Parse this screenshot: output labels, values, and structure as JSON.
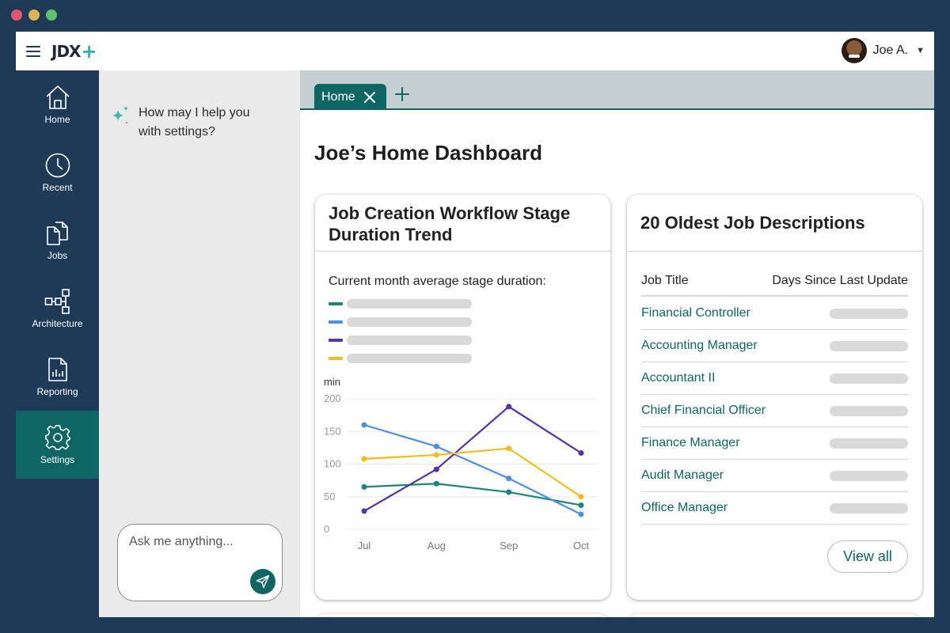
{
  "window": {
    "dot_colors": [
      "#e0566b",
      "#e0b256",
      "#5cc26b"
    ]
  },
  "topbar": {
    "logo_text": "JDX",
    "logo_plus": "+",
    "user_name": "Joe A.",
    "menu_icon": "hamburger-icon",
    "dropdown_icon": "caret-down-icon"
  },
  "nav": {
    "items": [
      {
        "label": "Home",
        "icon": "home-icon"
      },
      {
        "label": "Recent",
        "icon": "clock-icon"
      },
      {
        "label": "Jobs",
        "icon": "documents-icon"
      },
      {
        "label": "Architecture",
        "icon": "hierarchy-icon"
      },
      {
        "label": "Reporting",
        "icon": "report-icon"
      },
      {
        "label": "Settings",
        "icon": "gear-icon",
        "active": true
      }
    ]
  },
  "assistant": {
    "greeting": "How may I help you with settings?",
    "input_placeholder": "Ask me anything...",
    "sparkle_icon": "sparkle-icon",
    "send_icon": "send-icon"
  },
  "tabs": {
    "items": [
      {
        "label": "Home"
      }
    ],
    "add_icon": "plus-icon"
  },
  "dashboard": {
    "title": "Joe’s Home Dashboard",
    "chart_card": {
      "title": "Job Creation Workflow Stage Duration Trend",
      "subtitle": "Current month average stage duration:"
    },
    "jd_card": {
      "title": "20 Oldest Job Descriptions",
      "col_title": "Job Title",
      "col_days": "Days Since Last Update",
      "rows": [
        "Financial Controller",
        "Accounting Manager",
        "Accountant II",
        "Chief Financial Officer",
        "Finance Manager",
        "Audit Manager",
        "Office Manager"
      ],
      "view_all": "View all"
    }
  },
  "colors": {
    "accent": "#0d6664",
    "nav_bg": "#1e3a56",
    "series": [
      "#17877e",
      "#4a8fe7",
      "#5533aa",
      "#f4bb1a"
    ]
  },
  "chart_data": {
    "type": "line",
    "ylabel": "min",
    "ylim": [
      0,
      200
    ],
    "yticks": [
      0,
      50,
      100,
      150,
      200
    ],
    "categories": [
      "Jul",
      "Aug",
      "Sep",
      "Oct"
    ],
    "series": [
      {
        "color": "#17877e",
        "values": [
          65,
          70,
          57,
          37
        ]
      },
      {
        "color": "#4a8fe7",
        "values": [
          160,
          127,
          78,
          23
        ]
      },
      {
        "color": "#5533aa",
        "values": [
          28,
          92,
          188,
          117
        ]
      },
      {
        "color": "#f4bb1a",
        "values": [
          108,
          114,
          124,
          50
        ]
      }
    ],
    "grid": true,
    "legend": "top-left"
  }
}
